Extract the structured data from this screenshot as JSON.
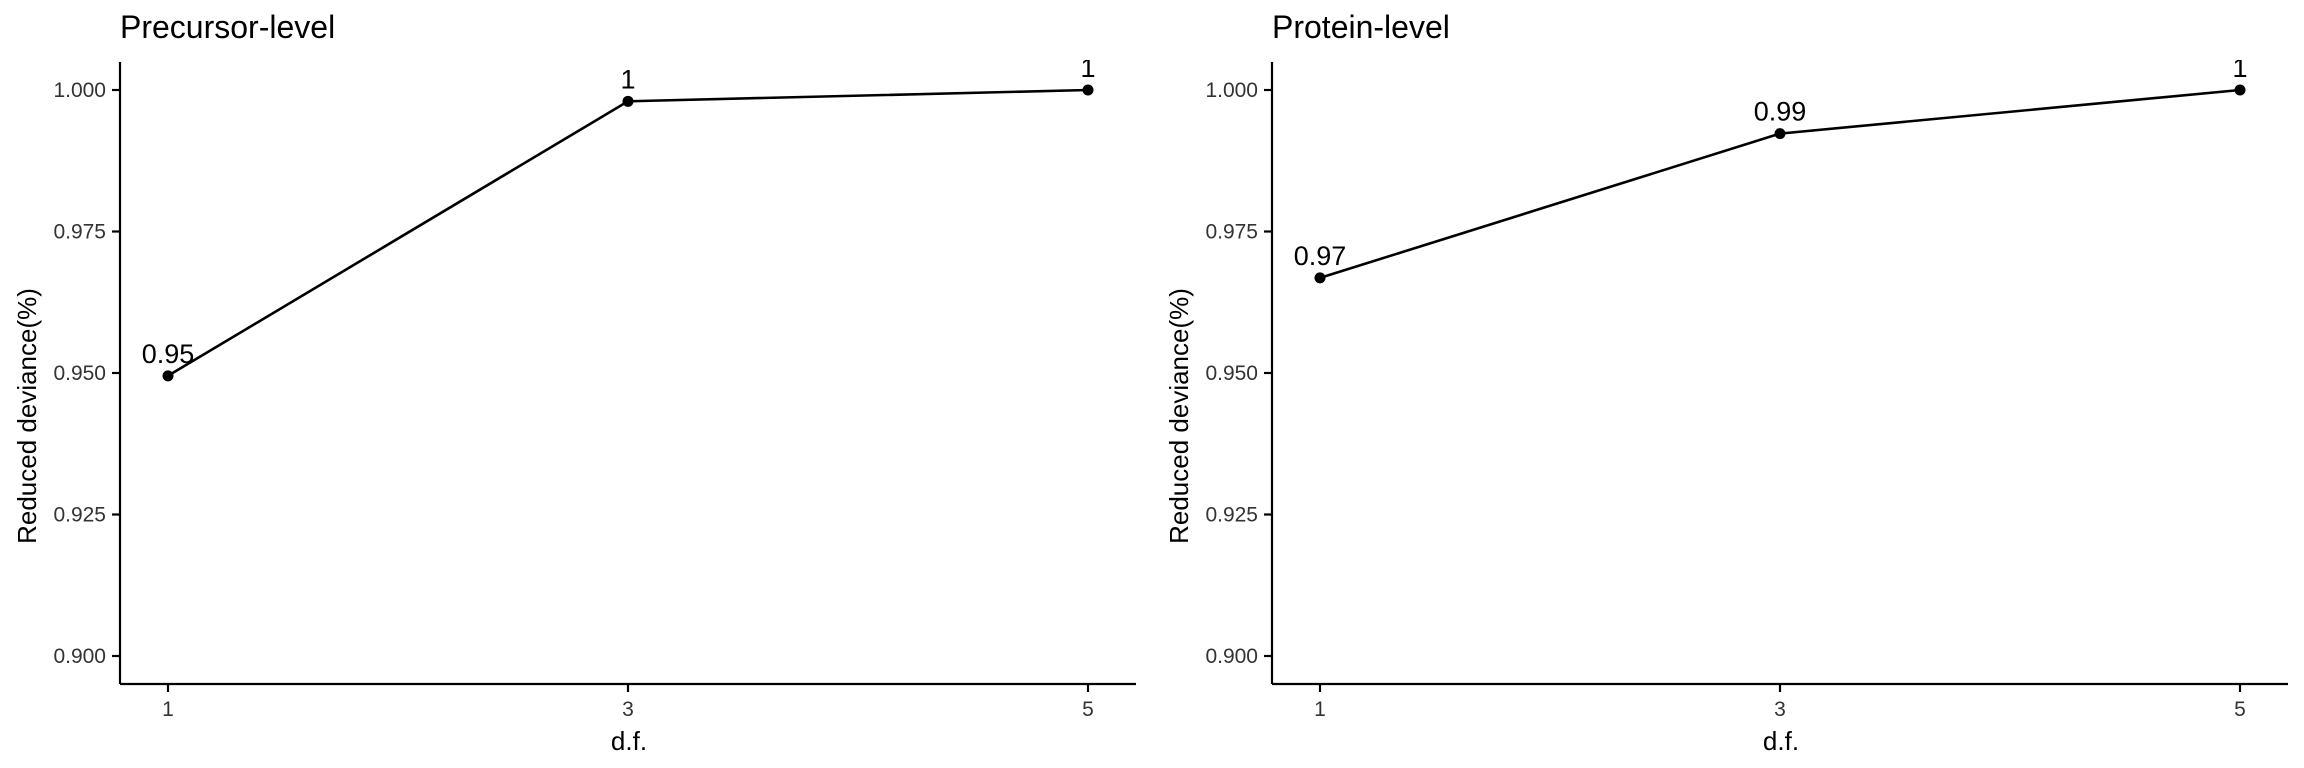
{
  "chart_data": [
    {
      "type": "line",
      "title": "Precursor-level",
      "xlabel": "d.f.",
      "ylabel": "Reduced deviance(%)",
      "x": [
        1,
        3,
        5
      ],
      "x_ticks": [
        "1",
        "3",
        "5"
      ],
      "y_ticks": [
        "0.900",
        "0.925",
        "0.950",
        "0.975",
        "1.000"
      ],
      "ylim": [
        0.9,
        1.0
      ],
      "series": [
        {
          "values": [
            0.9495,
            0.998,
            1.0
          ],
          "labels": [
            "0.95",
            "1",
            "1"
          ]
        }
      ],
      "grid": false,
      "legend": "none"
    },
    {
      "type": "line",
      "title": "Protein-level",
      "xlabel": "d.f.",
      "ylabel": "Reduced deviance(%)",
      "x": [
        1,
        3,
        5
      ],
      "x_ticks": [
        "1",
        "3",
        "5"
      ],
      "y_ticks": [
        "0.900",
        "0.925",
        "0.950",
        "0.975",
        "1.000"
      ],
      "ylim": [
        0.9,
        1.0
      ],
      "series": [
        {
          "values": [
            0.9668,
            0.9923,
            1.0
          ],
          "labels": [
            "0.97",
            "0.99",
            "1"
          ]
        }
      ],
      "grid": false,
      "legend": "none"
    }
  ]
}
